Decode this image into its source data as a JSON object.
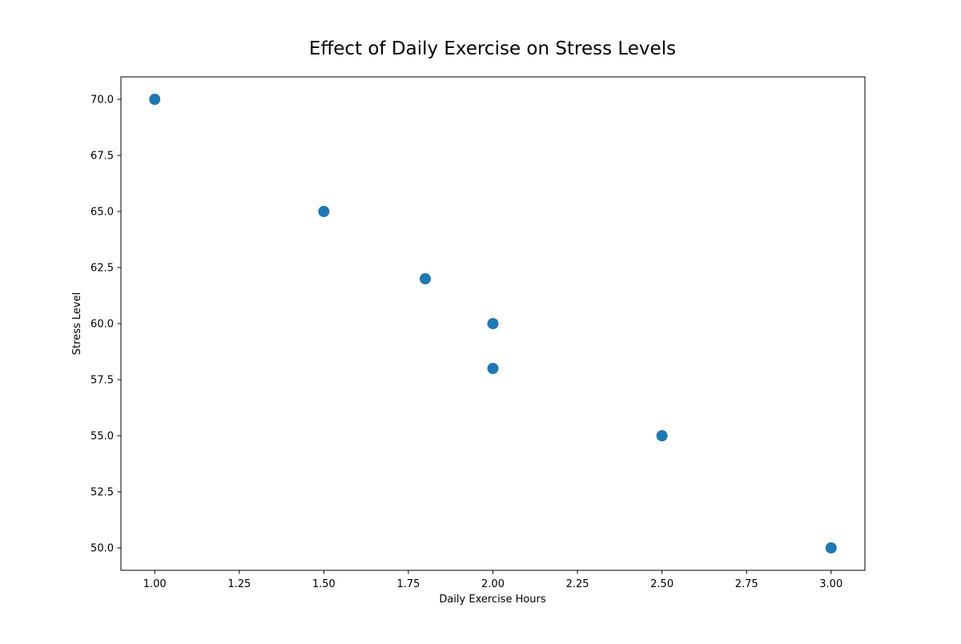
{
  "chart_data": {
    "type": "scatter",
    "title": "Effect of Daily Exercise on Stress Levels",
    "xlabel": "Daily Exercise Hours",
    "ylabel": "Stress Level",
    "xlim": [
      0.9,
      3.1
    ],
    "ylim": [
      49.0,
      71.0
    ],
    "x_ticks": [
      1.0,
      1.25,
      1.5,
      1.75,
      2.0,
      2.25,
      2.5,
      2.75,
      3.0
    ],
    "x_tick_labels": [
      "1.00",
      "1.25",
      "1.50",
      "1.75",
      "2.00",
      "2.25",
      "2.50",
      "2.75",
      "3.00"
    ],
    "y_ticks": [
      50.0,
      52.5,
      55.0,
      57.5,
      60.0,
      62.5,
      65.0,
      67.5,
      70.0
    ],
    "y_tick_labels": [
      "50.0",
      "52.5",
      "55.0",
      "57.5",
      "60.0",
      "62.5",
      "65.0",
      "67.5",
      "70.0"
    ],
    "grid": false,
    "legend": "none",
    "series": [
      {
        "color": "#1f77b4",
        "points": [
          {
            "x": 1.0,
            "y": 70.0
          },
          {
            "x": 1.5,
            "y": 65.0
          },
          {
            "x": 1.8,
            "y": 62.0
          },
          {
            "x": 2.0,
            "y": 60.0
          },
          {
            "x": 2.0,
            "y": 58.0
          },
          {
            "x": 2.5,
            "y": 55.0
          },
          {
            "x": 3.0,
            "y": 50.0
          }
        ]
      }
    ]
  }
}
